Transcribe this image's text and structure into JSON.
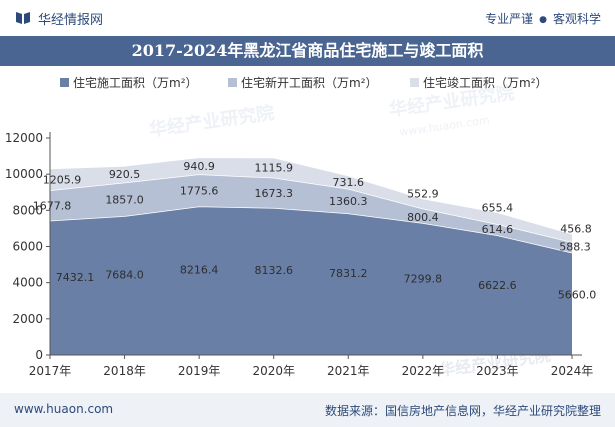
{
  "header": {
    "brand": "华经情报网",
    "tagline_left": "专业严谨",
    "tagline_right": "客观科学"
  },
  "footer": {
    "url": "www.huaon.com",
    "source": "数据来源：国信房地产信息网，华经产业研究院整理"
  },
  "watermarks": [
    "华经产业研究院",
    "www.huaon.com"
  ],
  "chart_data": {
    "type": "area",
    "stacked": true,
    "title": "2017-2024年黑龙江省商品住宅施工与竣工面积",
    "categories": [
      "2017年",
      "2018年",
      "2019年",
      "2020年",
      "2021年",
      "2022年",
      "2023年",
      "2024年"
    ],
    "ylim": [
      0,
      12000
    ],
    "yticks": [
      0,
      2000,
      4000,
      6000,
      8000,
      10000,
      12000
    ],
    "legend_position": "top",
    "grid": false,
    "series": [
      {
        "name": "住宅施工面积（万m²）",
        "color": "#6a7fa6",
        "values": [
          7432.1,
          7684.0,
          8216.4,
          8132.6,
          7831.2,
          7299.8,
          6622.6,
          5660.0
        ]
      },
      {
        "name": "住宅新开工面积（万m²）",
        "color": "#b6c0d5",
        "values": [
          1677.8,
          1857.0,
          1775.6,
          1673.3,
          1360.3,
          800.4,
          614.6,
          588.3
        ]
      },
      {
        "name": "住宅竣工面积（万m²）",
        "color": "#d9dee9",
        "values": [
          1205.9,
          920.5,
          940.9,
          1115.9,
          731.6,
          552.9,
          655.4,
          456.8
        ]
      }
    ]
  }
}
